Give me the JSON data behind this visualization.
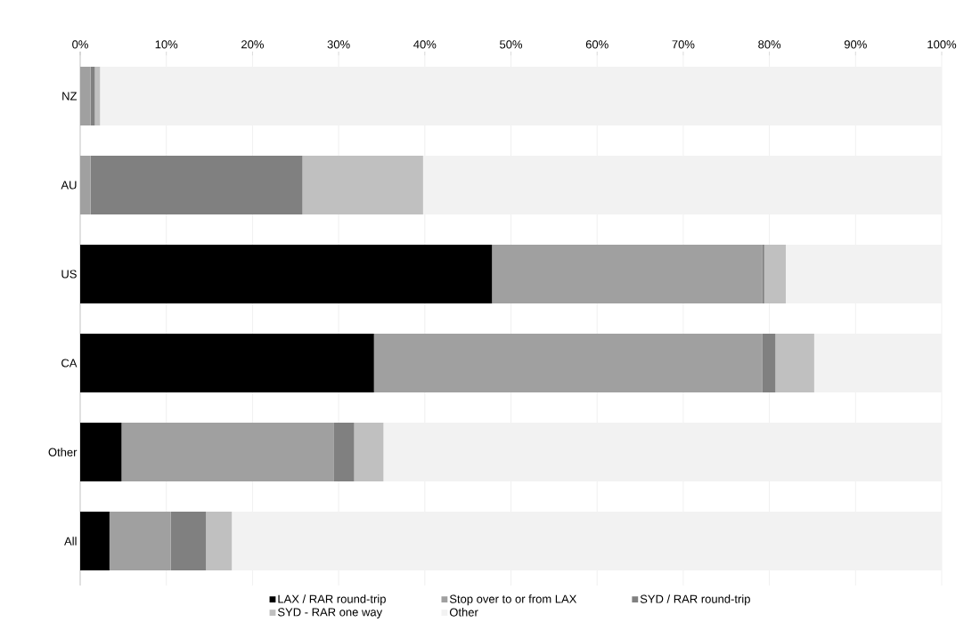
{
  "chart_data": {
    "type": "bar",
    "orientation": "horizontal",
    "stacked": true,
    "categories": [
      "NZ",
      "AU",
      "US",
      "CA",
      "Other",
      "All"
    ],
    "series": [
      {
        "name": "LAX / RAR round-trip",
        "color": "#000000",
        "values": [
          0,
          0,
          47.8,
          34.1,
          4.8,
          3.4
        ]
      },
      {
        "name": "Stop over to or from LAX",
        "color": "#a0a0a0",
        "values": [
          1.2,
          1.2,
          31.4,
          45.1,
          24.6,
          7.1
        ]
      },
      {
        "name": "SYD / RAR round-trip",
        "color": "#808080",
        "values": [
          0.5,
          24.6,
          0.2,
          1.5,
          2.4,
          4.1
        ]
      },
      {
        "name": "SYD - RAR one way",
        "color": "#c0c0c0",
        "values": [
          0.6,
          14.0,
          2.5,
          4.5,
          3.4,
          3.0
        ]
      },
      {
        "name": "Other",
        "color": "#f2f2f2",
        "values": [
          97.7,
          60.2,
          18.1,
          14.8,
          64.8,
          82.4
        ]
      }
    ],
    "xlim": [
      0,
      100
    ],
    "xticks": [
      {
        "value": 0,
        "label": "0%"
      },
      {
        "value": 10,
        "label": "10%"
      },
      {
        "value": 20,
        "label": "20%"
      },
      {
        "value": 30,
        "label": "30%"
      },
      {
        "value": 40,
        "label": "40%"
      },
      {
        "value": 50,
        "label": "50%"
      },
      {
        "value": 60,
        "label": "60%"
      },
      {
        "value": 70,
        "label": "70%"
      },
      {
        "value": 80,
        "label": "80%"
      },
      {
        "value": 90,
        "label": "90%"
      },
      {
        "value": 100,
        "label": "100%"
      }
    ],
    "grid": "x",
    "legend": "bottom"
  }
}
